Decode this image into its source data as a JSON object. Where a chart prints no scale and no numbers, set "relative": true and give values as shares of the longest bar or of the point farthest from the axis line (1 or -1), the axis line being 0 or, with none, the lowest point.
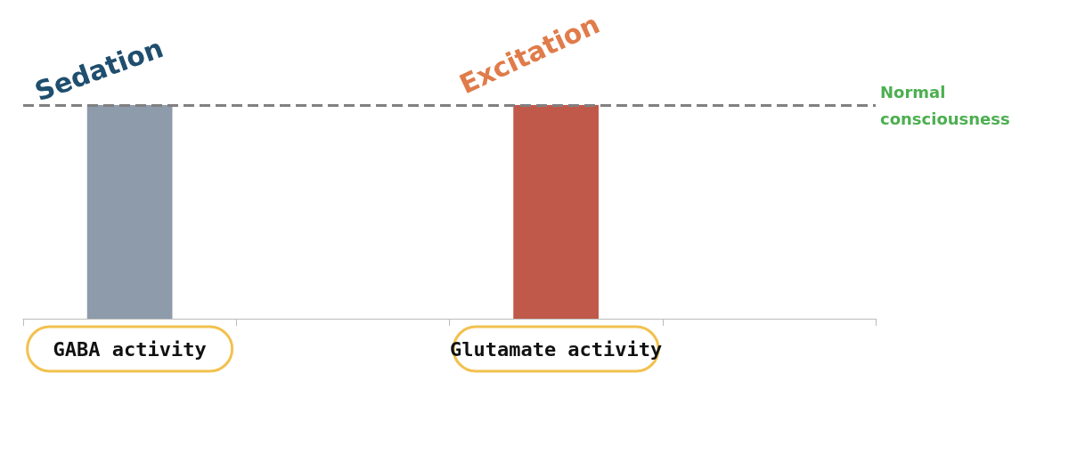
{
  "chart_data": {
    "type": "bar",
    "relative": true,
    "categories": [
      "GABA activity",
      null,
      "Glutamate activity",
      null
    ],
    "values": [
      1,
      null,
      1,
      null
    ],
    "colors": [
      "#8d9bab",
      null,
      "#c0594a",
      null
    ],
    "ref_lines": [
      {
        "axis": "y",
        "value": 1,
        "label": "Normal consciousness",
        "color": "#808080",
        "line_style": "dashed"
      }
    ],
    "annotations": [
      {
        "text": "Sedation",
        "x": "GABA activity",
        "y": 1
      },
      {
        "text": "Excitation",
        "x": "Glutamate activity",
        "y": 1
      }
    ],
    "grid": false
  }
}
